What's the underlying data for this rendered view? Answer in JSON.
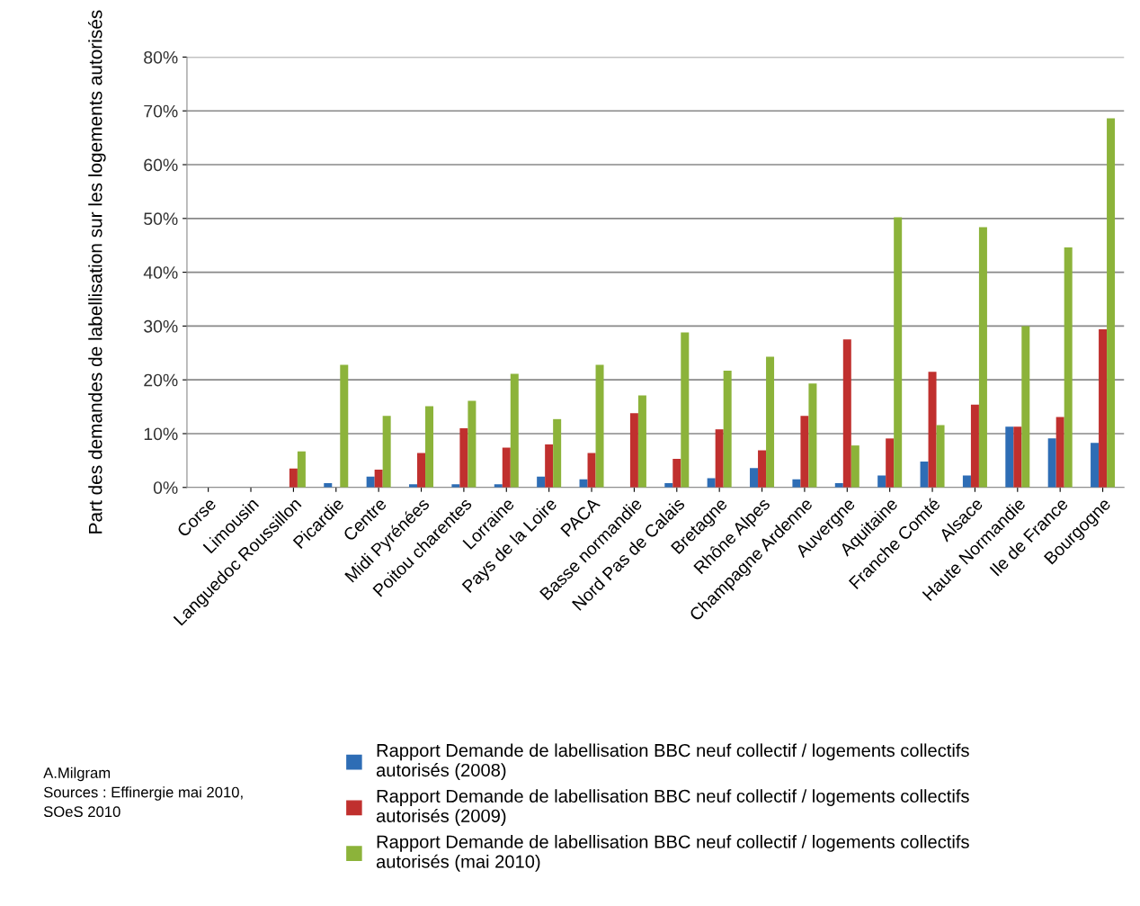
{
  "chart_data": {
    "type": "bar",
    "ylabel": "Part des demandes de labellisation sur les logements autorisés",
    "categories": [
      "Corse",
      "Limousin",
      "Languedoc Roussillon",
      "Picardie",
      "Centre",
      "Midi Pyrénées",
      "Poitou charentes",
      "Lorraine",
      "Pays de la Loire",
      "PACA",
      "Basse normandie",
      "Nord Pas de Calais",
      "Bretagne",
      "Rhône Alpes",
      "Champagne Ardenne",
      "Auvergne",
      "Aquitaine",
      "Franche Comté",
      "Alsace",
      "Haute Normandie",
      "Ile de France",
      "Bourgogne"
    ],
    "series": [
      {
        "name": "Rapport Demande de labellisation BBC neuf collectif / logements collectifs autorisés (2008)",
        "color": "#2e6db5",
        "values": [
          0,
          0,
          0,
          0.8,
          2.0,
          0.6,
          0.6,
          0.6,
          2.0,
          1.5,
          0,
          0.8,
          1.7,
          3.6,
          1.5,
          0.8,
          2.2,
          4.8,
          2.2,
          11.3,
          9.1,
          8.3
        ]
      },
      {
        "name": "Rapport Demande de labellisation BBC neuf collectif / logements collectifs autorisés (2009)",
        "color": "#c0302e",
        "values": [
          0,
          0,
          3.5,
          0,
          3.3,
          6.4,
          11.0,
          7.4,
          8.0,
          6.4,
          13.8,
          5.3,
          10.8,
          6.9,
          13.3,
          27.5,
          9.1,
          21.5,
          15.4,
          11.3,
          13.1,
          29.4
        ]
      },
      {
        "name": "Rapport Demande de labellisation BBC neuf collectif / logements collectifs autorisés (mai 2010)",
        "color": "#8cb33a",
        "values": [
          0,
          0,
          6.7,
          22.8,
          13.3,
          15.1,
          16.1,
          21.1,
          12.7,
          22.8,
          17.1,
          28.8,
          21.7,
          24.3,
          19.3,
          7.8,
          50.2,
          11.6,
          48.4,
          30.0,
          44.6,
          68.6
        ]
      }
    ],
    "ylim": [
      0,
      80
    ],
    "yticks": [
      {
        "value": 0,
        "label": "0%"
      },
      {
        "value": 10,
        "label": "10%"
      },
      {
        "value": 20,
        "label": "20%"
      },
      {
        "value": 30,
        "label": "30%"
      },
      {
        "value": 40,
        "label": "40%"
      },
      {
        "value": 50,
        "label": "50%"
      },
      {
        "value": 60,
        "label": "60%"
      },
      {
        "value": 70,
        "label": "70%"
      },
      {
        "value": 80,
        "label": "80%"
      }
    ],
    "grid": "y",
    "legend": "bottom",
    "annotations": [
      "A.Milgram\nSources : Effinergie mai 2010,\nSOeS 2010"
    ]
  }
}
